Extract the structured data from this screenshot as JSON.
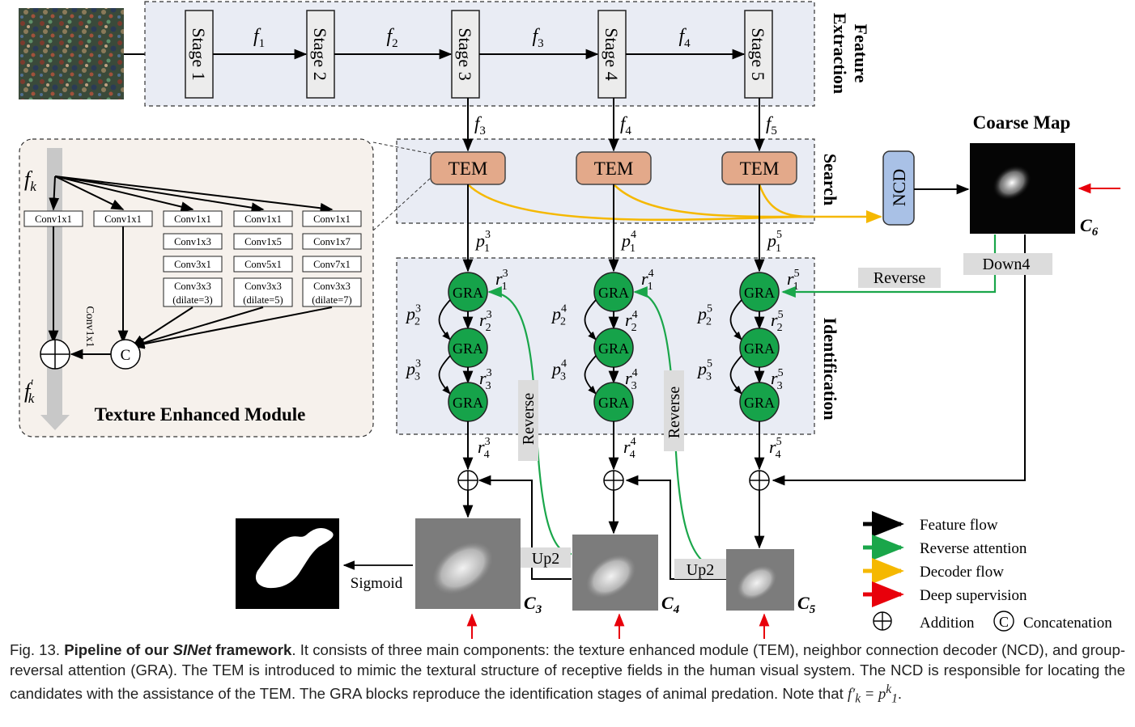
{
  "feature_extraction": {
    "title_line1": "Feature",
    "title_line2": "Extraction",
    "stages": [
      "Stage 1",
      "Stage 2",
      "Stage 3",
      "Stage 4",
      "Stage 5"
    ],
    "stage_features": [
      "f",
      "f",
      "f",
      "f"
    ],
    "stage_feature_subs": [
      "1",
      "2",
      "3",
      "4"
    ]
  },
  "search": {
    "title": "Search",
    "tem_label": "TEM",
    "tem_inputs": [
      "3",
      "4",
      "5"
    ],
    "ncd_label": "NCD"
  },
  "coarse_map": {
    "title": "Coarse  Map",
    "label": "6"
  },
  "identification": {
    "title": "Identification",
    "gra_label": "GRA",
    "columns": [
      "3",
      "4",
      "5"
    ],
    "reverse_label": "Reverse",
    "down_label": "Down4",
    "up_label": "Up2",
    "sigmoid_label": "Sigmoid"
  },
  "outputs": {
    "labels": [
      "3",
      "4",
      "5"
    ]
  },
  "tem_module": {
    "title": "Texture Enhanced Module",
    "input_label": "f",
    "input_sub": "k",
    "output_label": "f",
    "output_sub": "k",
    "conv_row1": [
      "Conv1x1",
      "Conv1x1",
      "Conv1x1",
      "Conv1x1",
      "Conv1x1"
    ],
    "conv_row2": [
      "Conv1x3",
      "Conv1x5",
      "Conv1x7"
    ],
    "conv_row3": [
      "Conv3x1",
      "Conv5x1",
      "Conv7x1"
    ],
    "conv_row4_a": [
      "Conv3x3",
      "Conv3x3",
      "Conv3x3"
    ],
    "conv_row4_b": [
      "(dilate=3)",
      "(dilate=5)",
      "(dilate=7)"
    ],
    "side_conv": "Conv1x1",
    "concat_symbol": "C"
  },
  "legend": {
    "items": [
      "Feature flow",
      "Reverse attention",
      "Decoder flow",
      "Deep supervision"
    ],
    "addition": "Addition",
    "concat_symbol": "C",
    "concatenation": "Concatenation"
  },
  "colors": {
    "feature_flow": "#000000",
    "reverse_attention": "#1aa64a",
    "decoder_flow": "#f5b800",
    "deep_supervision": "#e8000b",
    "gra_fill": "#16a34a",
    "tem_fill": "#e3a98a",
    "ncd_fill": "#a9c1e6",
    "panel_fill": "#e9ecf4"
  },
  "caption": {
    "fig": "Fig. 13.",
    "bold": "Pipeline of our",
    "bold_italic": "SINet",
    "bold_tail": "framework",
    "text": ". It consists of three main components: the texture enhanced module (TEM), neighbor connection decoder (NCD), and group-reversal attention (GRA). The TEM is introduced to mimic the textural structure of receptive fields in the human visual system. The NCD is responsible for locating the candidates with the assistance of the TEM. The GRA blocks reproduce the identification stages of animal predation. Note that"
  }
}
